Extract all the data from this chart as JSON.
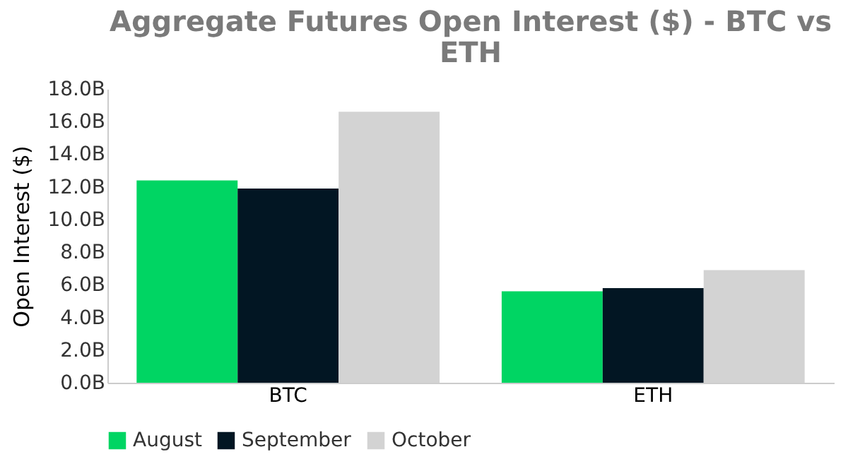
{
  "chart_data": {
    "type": "bar",
    "title": "Aggregate Futures Open Interest ($) - BTC vs ETH",
    "ylabel": "Open Interest ($)",
    "categories": [
      "BTC",
      "ETH"
    ],
    "series": [
      {
        "name": "August",
        "color": "#00d563",
        "values": [
          12.4,
          5.6
        ]
      },
      {
        "name": "September",
        "color": "#021623",
        "values": [
          11.9,
          5.8
        ]
      },
      {
        "name": "October",
        "color": "#d3d3d3",
        "values": [
          16.6,
          6.9
        ]
      }
    ],
    "ylim": [
      0,
      18
    ],
    "yticks": [
      {
        "value": 0,
        "label": "0.0B"
      },
      {
        "value": 2,
        "label": "2.0B"
      },
      {
        "value": 4,
        "label": "4.0B"
      },
      {
        "value": 6,
        "label": "6.0B"
      },
      {
        "value": 8,
        "label": "8.0B"
      },
      {
        "value": 10,
        "label": "10.0B"
      },
      {
        "value": 12,
        "label": "12.0B"
      },
      {
        "value": 14,
        "label": "14.0B"
      },
      {
        "value": 16,
        "label": "16.0B"
      },
      {
        "value": 18,
        "label": "18.0B"
      }
    ],
    "legend": "bottom"
  }
}
